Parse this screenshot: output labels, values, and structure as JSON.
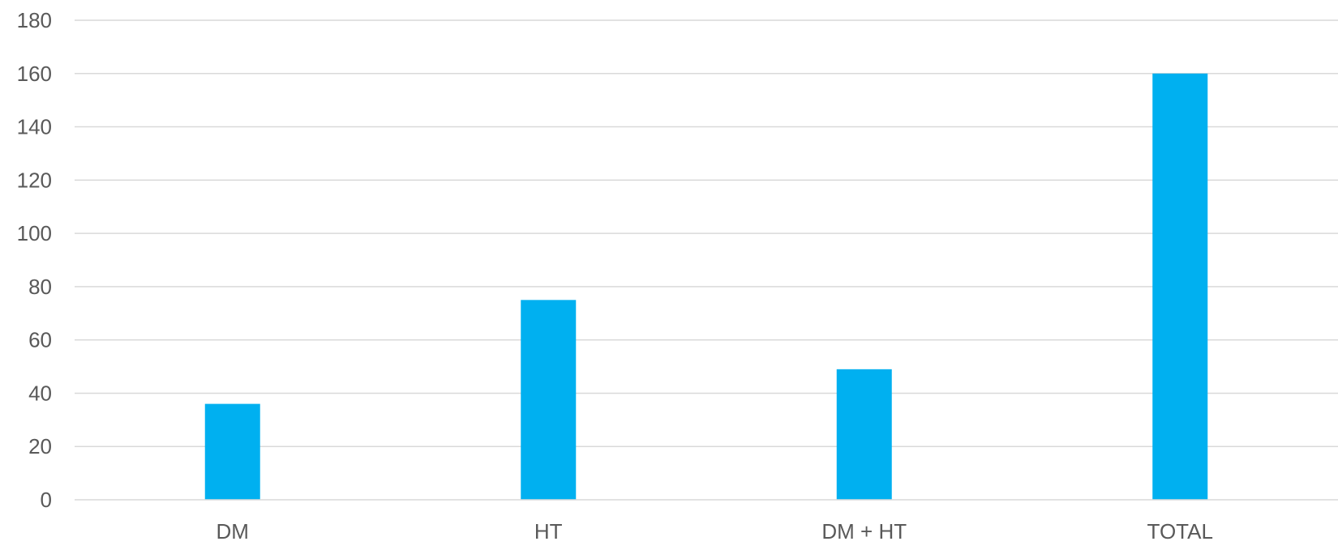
{
  "chart_data": {
    "type": "bar",
    "title": "",
    "xlabel": "",
    "ylabel": "",
    "categories": [
      "DM",
      "HT",
      "DM + HT",
      "TOTAL"
    ],
    "series": [
      {
        "values": [
          36,
          75,
          49,
          160
        ]
      }
    ],
    "ylim": [
      0,
      180
    ],
    "yticks": [
      0,
      20,
      40,
      60,
      80,
      100,
      120,
      140,
      160,
      180
    ],
    "ytick_labels": [
      "0",
      "20",
      "40",
      "60",
      "80",
      "100",
      "120",
      "140",
      "160",
      "180"
    ],
    "grid": true,
    "legend": "none",
    "bar_color": "#00b0f0",
    "grid_color": "#d9d9d9",
    "text_color": "#595959"
  }
}
